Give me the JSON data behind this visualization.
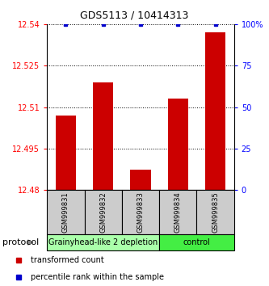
{
  "title": "GDS5113 / 10414313",
  "samples": [
    "GSM999831",
    "GSM999832",
    "GSM999833",
    "GSM999834",
    "GSM999835"
  ],
  "bar_values": [
    12.507,
    12.519,
    12.4875,
    12.513,
    12.537
  ],
  "bar_color": "#cc0000",
  "percentile_values": [
    100,
    100,
    100,
    100,
    100
  ],
  "dot_color": "#0000cc",
  "ylim_left": [
    12.48,
    12.54
  ],
  "ylim_right": [
    0,
    100
  ],
  "yticks_left": [
    12.48,
    12.495,
    12.51,
    12.525,
    12.54
  ],
  "yticks_right": [
    0,
    25,
    50,
    75,
    100
  ],
  "ytick_labels_left": [
    "12.48",
    "12.495",
    "12.51",
    "12.525",
    "12.54"
  ],
  "ytick_labels_right": [
    "0",
    "25",
    "50",
    "75",
    "100%"
  ],
  "groups": [
    {
      "label": "Grainyhead-like 2 depletion",
      "indices": [
        0,
        1,
        2
      ],
      "color": "#aaffaa"
    },
    {
      "label": "control",
      "indices": [
        3,
        4
      ],
      "color": "#44ee44"
    }
  ],
  "protocol_label": "protocol",
  "legend_items": [
    {
      "label": "transformed count",
      "color": "#cc0000"
    },
    {
      "label": "percentile rank within the sample",
      "color": "#0000cc"
    }
  ],
  "background_color": "#ffffff",
  "bar_bottom": 12.48,
  "bar_width": 0.55,
  "sample_box_color": "#cccccc",
  "title_fontsize": 9,
  "axis_fontsize": 7,
  "sample_fontsize": 6,
  "group_fontsize": 7,
  "legend_fontsize": 7
}
